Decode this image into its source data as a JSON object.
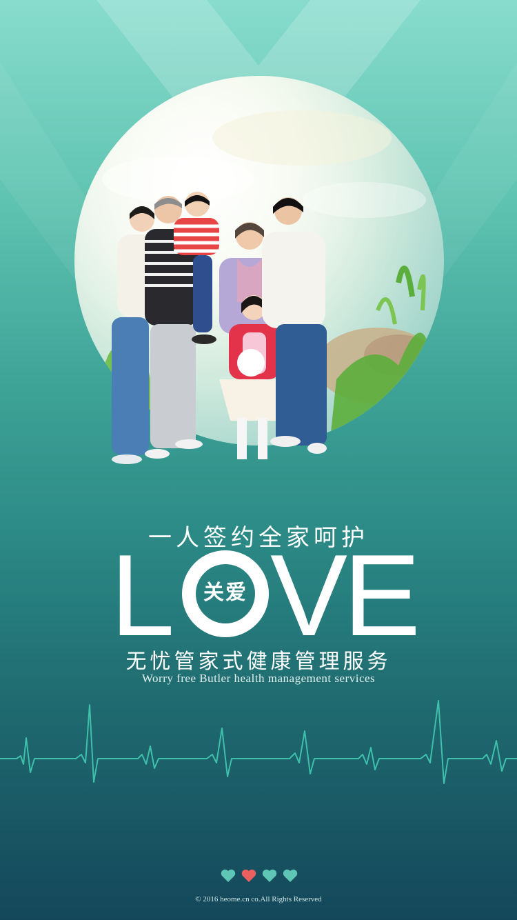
{
  "tagline": "一人签约全家呵护",
  "love": {
    "letter_l": "L",
    "letter_v": "V",
    "letter_e": "E",
    "center_cn": "关爱"
  },
  "subtitle_cn": "无忧管家式健康管理服务",
  "subtitle_en": "Worry free Butler health management services",
  "hearts": [
    {
      "icon": "heart-icon",
      "color": "#5fc6b5"
    },
    {
      "icon": "heart-icon",
      "color": "#ec5f5f"
    },
    {
      "icon": "heart-icon",
      "color": "#5fc6b5"
    },
    {
      "icon": "heart-icon",
      "color": "#5fc6b5"
    }
  ],
  "footer": "© 2016 heome.cn co.All Rights Reserved",
  "colors": {
    "background_top": "#88dccd",
    "background_bottom": "#14475a",
    "ecg_line": "#3fc0aa",
    "heart_active": "#ec5f5f",
    "heart_inactive": "#5fc6b5"
  }
}
